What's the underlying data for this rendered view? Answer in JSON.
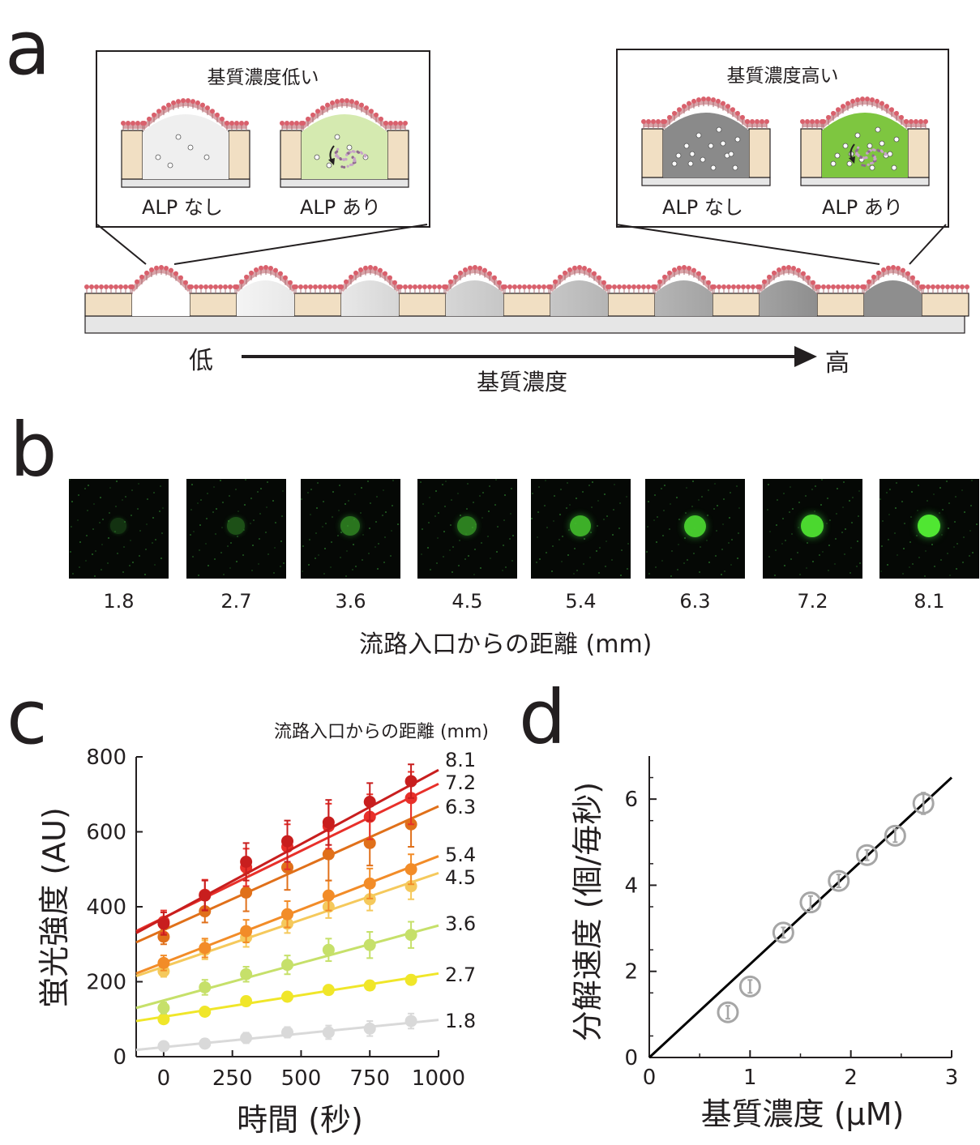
{
  "panel_a": {
    "letter": "a",
    "inset_low": {
      "title": "基質濃度低い",
      "left_label": "ALP なし",
      "right_label": "ALP あり"
    },
    "inset_high": {
      "title": "基質濃度高い",
      "left_label": "ALP なし",
      "right_label": "ALP あり"
    },
    "gradient_low_label": "低",
    "gradient_high_label": "高",
    "gradient_axis_label": "基質濃度"
  },
  "panel_b": {
    "letter": "b",
    "distances": [
      "1.8",
      "2.7",
      "3.6",
      "4.5",
      "5.4",
      "6.3",
      "7.2",
      "8.1"
    ],
    "brightness": [
      0.15,
      0.35,
      0.55,
      0.6,
      0.8,
      0.9,
      0.95,
      1.0
    ],
    "axis_label": "流路入口からの距離 (mm)"
  },
  "panel_c": {
    "letter": "c",
    "chart_data": {
      "type": "scatter",
      "xlabel": "時間 (秒)",
      "ylabel": "蛍光強度 (AU)",
      "legend_title": "流路入口からの距離 (mm)",
      "xlim": [
        -100,
        1000
      ],
      "ylim": [
        0,
        800
      ],
      "xticks": [
        0,
        250,
        500,
        750,
        1000
      ],
      "yticks": [
        0,
        200,
        400,
        600,
        800
      ],
      "x": [
        0,
        150,
        300,
        450,
        600,
        750,
        900
      ],
      "series": [
        {
          "name": "1.8",
          "color": "#d9d9d9",
          "values": [
            28,
            35,
            50,
            65,
            65,
            75,
            95
          ],
          "err": [
            10,
            12,
            14,
            14,
            18,
            20,
            20
          ],
          "fit": [
            18,
            98
          ]
        },
        {
          "name": "2.7",
          "color": "#f0e629",
          "values": [
            100,
            120,
            148,
            160,
            178,
            190,
            205
          ],
          "err": [
            10,
            10,
            12,
            12,
            10,
            12,
            12
          ],
          "fit": [
            95,
            222
          ]
        },
        {
          "name": "3.6",
          "color": "#c6e06a",
          "values": [
            130,
            185,
            220,
            245,
            285,
            298,
            325
          ],
          "err": [
            15,
            20,
            20,
            25,
            30,
            35,
            35
          ],
          "fit": [
            130,
            350
          ]
        },
        {
          "name": "4.5",
          "color": "#f5c95c",
          "values": [
            228,
            285,
            318,
            355,
            400,
            420,
            455
          ],
          "err": [
            15,
            25,
            25,
            25,
            30,
            30,
            35
          ],
          "fit": [
            215,
            490
          ]
        },
        {
          "name": "5.4",
          "color": "#f28c28",
          "values": [
            250,
            290,
            335,
            380,
            430,
            462,
            500
          ],
          "err": [
            20,
            25,
            30,
            35,
            40,
            40,
            40
          ],
          "fit": [
            222,
            535
          ]
        },
        {
          "name": "6.3",
          "color": "#e0701a",
          "values": [
            320,
            388,
            438,
            505,
            540,
            570,
            620
          ],
          "err": [
            20,
            30,
            50,
            60,
            70,
            60,
            60
          ],
          "fit": [
            305,
            668
          ]
        },
        {
          "name": "7.2",
          "color": "#e8302a",
          "values": [
            360,
            432,
            505,
            560,
            615,
            640,
            690
          ],
          "err": [
            30,
            40,
            50,
            60,
            60,
            60,
            70
          ],
          "fit": [
            335,
            728
          ]
        },
        {
          "name": "8.1",
          "color": "#c81e1e",
          "values": [
            355,
            430,
            520,
            575,
            625,
            680,
            735
          ],
          "err": [
            30,
            40,
            50,
            55,
            60,
            50,
            45
          ],
          "fit": [
            330,
            765
          ]
        }
      ]
    }
  },
  "panel_d": {
    "letter": "d",
    "chart_data": {
      "type": "scatter",
      "xlabel": "基質濃度 (μM)",
      "ylabel": "分解速度 (個/毎秒)",
      "xlim": [
        0,
        3
      ],
      "ylim": [
        0,
        7
      ],
      "xticks": [
        0,
        1,
        2,
        3
      ],
      "yticks": [
        0,
        2,
        4,
        6
      ],
      "points": [
        {
          "x": 0.78,
          "y": 1.05,
          "err": 0.15
        },
        {
          "x": 1.0,
          "y": 1.65,
          "err": 0.15
        },
        {
          "x": 1.33,
          "y": 2.9,
          "err": 0.12
        },
        {
          "x": 1.6,
          "y": 3.6,
          "err": 0.15
        },
        {
          "x": 1.88,
          "y": 4.1,
          "err": 0.15
        },
        {
          "x": 2.16,
          "y": 4.7,
          "err": 0.12
        },
        {
          "x": 2.44,
          "y": 5.15,
          "err": 0.15
        },
        {
          "x": 2.72,
          "y": 5.9,
          "err": 0.25
        }
      ],
      "fit": {
        "x": [
          0,
          3
        ],
        "y": [
          0,
          6.5
        ]
      },
      "marker_color": "#a6a6a6",
      "line_color": "#000000"
    }
  }
}
